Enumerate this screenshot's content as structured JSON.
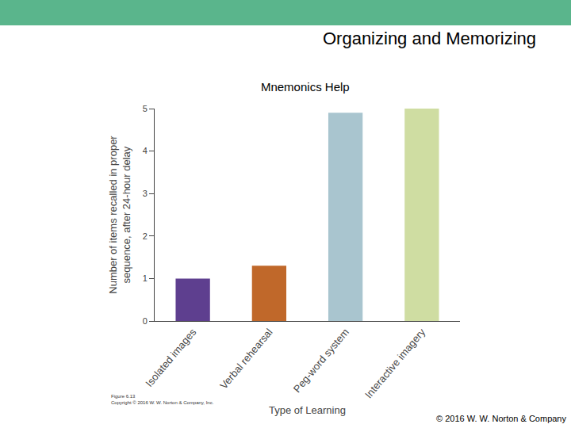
{
  "slide": {
    "header": "Organizing and Memorizing",
    "figure_caption": [
      "Figure 6.13",
      "Copyright © 2016 W. W. Norton & Company, Inc."
    ],
    "footer": "© 2016 W. W. Norton & Company"
  },
  "chart_data": {
    "type": "bar",
    "title": "Mnemonics Help",
    "categories": [
      "Isolated images",
      "Verbal rehearsal",
      "Peg-word system",
      "Interactive imagery"
    ],
    "values": [
      1.0,
      1.3,
      4.9,
      5.0
    ],
    "colors": [
      "#5e3f8f",
      "#c0682a",
      "#a9c5cf",
      "#cfdda2"
    ],
    "xlabel": "Type of Learning",
    "ylabel": [
      "Number of items recalled in proper",
      "sequence, after 24-hour delay"
    ],
    "ylim": [
      0,
      5
    ],
    "yticks": [
      0,
      1,
      2,
      3,
      4,
      5
    ],
    "grid": false
  }
}
